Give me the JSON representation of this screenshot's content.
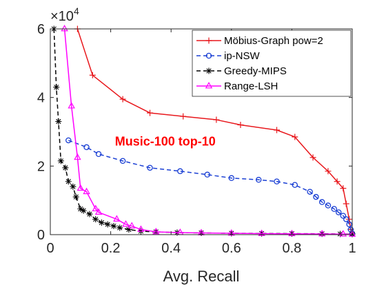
{
  "chart_data": {
    "type": "line",
    "title": "",
    "xlabel": "Avg. Recall",
    "ylabel": "",
    "y_multiplier_base": "×10",
    "y_multiplier_exp": "4",
    "xlim": [
      0,
      1
    ],
    "ylim": [
      0,
      60000
    ],
    "x_ticks": [
      0,
      0.2,
      0.4,
      0.6,
      0.8,
      1
    ],
    "x_tick_labels": [
      "0",
      "0.2",
      "0.4",
      "0.6",
      "0.8",
      "1"
    ],
    "y_ticks": [
      0,
      20000,
      40000,
      60000
    ],
    "y_tick_labels": [
      "0",
      "2",
      "4",
      "6"
    ],
    "grid": false,
    "legend_position": "top-right",
    "annotation": {
      "text": "Music-100 top-10",
      "color": "#ff0000",
      "x": 0.214,
      "y": 26000
    },
    "series": [
      {
        "name": "Möbius-Graph pow=2",
        "color": "#e8161b",
        "marker": "plus",
        "dash": "solid",
        "points": [
          [
            0.09,
            60000
          ],
          [
            0.14,
            46500
          ],
          [
            0.24,
            39500
          ],
          [
            0.33,
            35500
          ],
          [
            0.44,
            34500
          ],
          [
            0.55,
            33500
          ],
          [
            0.63,
            32000
          ],
          [
            0.75,
            30500
          ],
          [
            0.81,
            28500
          ],
          [
            0.87,
            22500
          ],
          [
            0.92,
            18500
          ],
          [
            0.95,
            15500
          ],
          [
            0.97,
            13500
          ],
          [
            0.98,
            9000
          ],
          [
            0.99,
            4500
          ],
          [
            0.995,
            1500
          ],
          [
            1.0,
            300
          ]
        ]
      },
      {
        "name": "ip-NSW",
        "color": "#1a3fd4",
        "marker": "circle",
        "dash": "dashed",
        "points": [
          [
            0.06,
            27500
          ],
          [
            0.12,
            25500
          ],
          [
            0.16,
            23500
          ],
          [
            0.24,
            21500
          ],
          [
            0.33,
            19500
          ],
          [
            0.43,
            18500
          ],
          [
            0.52,
            17500
          ],
          [
            0.6,
            16500
          ],
          [
            0.69,
            16000
          ],
          [
            0.75,
            15500
          ],
          [
            0.81,
            14500
          ],
          [
            0.86,
            12500
          ],
          [
            0.88,
            11000
          ],
          [
            0.9,
            9500
          ],
          [
            0.92,
            8500
          ],
          [
            0.94,
            7500
          ],
          [
            0.955,
            6500
          ],
          [
            0.97,
            5500
          ],
          [
            0.98,
            4500
          ],
          [
            0.99,
            3000
          ],
          [
            0.995,
            1500
          ],
          [
            1.0,
            300
          ]
        ]
      },
      {
        "name": "Greedy-MIPS",
        "color": "#000000",
        "marker": "asterisk",
        "dash": "dashed",
        "points": [
          [
            0.012,
            60000
          ],
          [
            0.02,
            43000
          ],
          [
            0.027,
            33000
          ],
          [
            0.035,
            21500
          ],
          [
            0.05,
            19500
          ],
          [
            0.06,
            15500
          ],
          [
            0.075,
            14000
          ],
          [
            0.085,
            11000
          ],
          [
            0.1,
            7500
          ],
          [
            0.11,
            7000
          ],
          [
            0.13,
            6000
          ],
          [
            0.15,
            4500
          ],
          [
            0.17,
            3500
          ],
          [
            0.19,
            3000
          ],
          [
            0.21,
            2500
          ],
          [
            0.23,
            2000
          ],
          [
            0.26,
            1500
          ],
          [
            0.3,
            1000
          ],
          [
            0.35,
            800
          ],
          [
            0.42,
            600
          ],
          [
            0.5,
            500
          ],
          [
            0.6,
            400
          ],
          [
            0.7,
            350
          ],
          [
            0.8,
            300
          ],
          [
            0.9,
            250
          ],
          [
            0.96,
            200
          ],
          [
            1.0,
            150
          ]
        ]
      },
      {
        "name": "Range-LSH",
        "color": "#ff00ff",
        "marker": "triangle",
        "dash": "solid",
        "points": [
          [
            0.047,
            60000
          ],
          [
            0.07,
            37500
          ],
          [
            0.09,
            22500
          ],
          [
            0.1,
            13500
          ],
          [
            0.12,
            12500
          ],
          [
            0.15,
            7500
          ],
          [
            0.16,
            6500
          ],
          [
            0.22,
            4500
          ],
          [
            0.25,
            3000
          ],
          [
            0.27,
            2500
          ],
          [
            0.3,
            1500
          ],
          [
            0.35,
            800
          ],
          [
            0.43,
            600
          ],
          [
            0.5,
            500
          ],
          [
            0.6,
            400
          ],
          [
            0.7,
            300
          ],
          [
            0.8,
            250
          ],
          [
            0.9,
            200
          ],
          [
            0.97,
            150
          ],
          [
            1.0,
            100
          ]
        ]
      }
    ]
  }
}
